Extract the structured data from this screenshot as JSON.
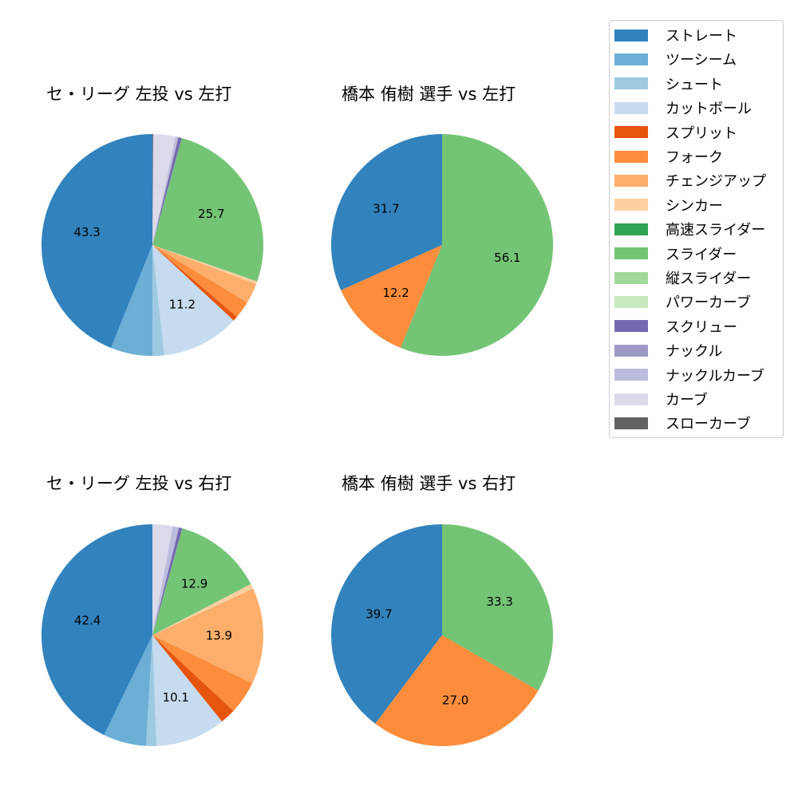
{
  "legend": {
    "items": [
      {
        "label": "ストレート",
        "color": "#3182bd"
      },
      {
        "label": "ツーシーム",
        "color": "#6baed6"
      },
      {
        "label": "シュート",
        "color": "#9ecae1"
      },
      {
        "label": "カットボール",
        "color": "#c6dbef"
      },
      {
        "label": "スプリット",
        "color": "#e6550d"
      },
      {
        "label": "フォーク",
        "color": "#fd8d3c"
      },
      {
        "label": "チェンジアップ",
        "color": "#fdae6b"
      },
      {
        "label": "シンカー",
        "color": "#fdd0a2"
      },
      {
        "label": "高速スライダー",
        "color": "#31a354"
      },
      {
        "label": "スライダー",
        "color": "#74c476"
      },
      {
        "label": "縦スライダー",
        "color": "#a1d99b"
      },
      {
        "label": "パワーカーブ",
        "color": "#c7e9c0"
      },
      {
        "label": "スクリュー",
        "color": "#756bb1"
      },
      {
        "label": "ナックル",
        "color": "#9e9ac8"
      },
      {
        "label": "ナックルカーブ",
        "color": "#bcbddc"
      },
      {
        "label": "カーブ",
        "color": "#dadaeb"
      },
      {
        "label": "スローカーブ",
        "color": "#636363"
      }
    ]
  },
  "chart_data": [
    {
      "type": "pie",
      "title": "セ・リーグ 左投 vs 左打",
      "slices": [
        {
          "label": "ストレート",
          "value": 43.3,
          "color": "#3182bd",
          "show_label": true
        },
        {
          "label": "ツーシーム",
          "value": 6.0,
          "color": "#6baed6",
          "show_label": false
        },
        {
          "label": "シュート",
          "value": 1.7,
          "color": "#9ecae1",
          "show_label": false
        },
        {
          "label": "カットボール",
          "value": 11.2,
          "color": "#c6dbef",
          "show_label": true
        },
        {
          "label": "スプリット",
          "value": 0.7,
          "color": "#e6550d",
          "show_label": false
        },
        {
          "label": "フォーク",
          "value": 2.5,
          "color": "#fd8d3c",
          "show_label": false
        },
        {
          "label": "チェンジアップ",
          "value": 2.9,
          "color": "#fdae6b",
          "show_label": false
        },
        {
          "label": "シンカー",
          "value": 0.4,
          "color": "#fdd0a2",
          "show_label": false
        },
        {
          "label": "スライダー",
          "value": 25.7,
          "color": "#74c476",
          "show_label": true
        },
        {
          "label": "スクリュー",
          "value": 0.5,
          "color": "#756bb1",
          "show_label": false
        },
        {
          "label": "ナックルカーブ",
          "value": 0.4,
          "color": "#bcbddc",
          "show_label": false
        },
        {
          "label": "カーブ",
          "value": 3.2,
          "color": "#dadaeb",
          "show_label": false
        },
        {
          "label": "スローカーブ",
          "value": 0.1,
          "color": "#636363",
          "show_label": false
        }
      ]
    },
    {
      "type": "pie",
      "title": "橋本 侑樹 選手 vs 左打",
      "slices": [
        {
          "label": "ストレート",
          "value": 31.7,
          "color": "#3182bd",
          "show_label": true
        },
        {
          "label": "フォーク",
          "value": 12.2,
          "color": "#fd8d3c",
          "show_label": true
        },
        {
          "label": "スライダー",
          "value": 56.1,
          "color": "#74c476",
          "show_label": true
        }
      ]
    },
    {
      "type": "pie",
      "title": "セ・リーグ 左投 vs 右打",
      "slices": [
        {
          "label": "ストレート",
          "value": 42.4,
          "color": "#3182bd",
          "show_label": true
        },
        {
          "label": "ツーシーム",
          "value": 6.2,
          "color": "#6baed6",
          "show_label": false
        },
        {
          "label": "シュート",
          "value": 1.5,
          "color": "#9ecae1",
          "show_label": false
        },
        {
          "label": "カットボール",
          "value": 10.1,
          "color": "#c6dbef",
          "show_label": true
        },
        {
          "label": "スプリット",
          "value": 2.2,
          "color": "#e6550d",
          "show_label": false
        },
        {
          "label": "フォーク",
          "value": 4.8,
          "color": "#fd8d3c",
          "show_label": false
        },
        {
          "label": "チェンジアップ",
          "value": 13.9,
          "color": "#fdae6b",
          "show_label": true
        },
        {
          "label": "シンカー",
          "value": 0.7,
          "color": "#fdd0a2",
          "show_label": false
        },
        {
          "label": "スライダー",
          "value": 12.9,
          "color": "#74c476",
          "show_label": true
        },
        {
          "label": "スクリュー",
          "value": 0.5,
          "color": "#756bb1",
          "show_label": false
        },
        {
          "label": "ナックルカーブ",
          "value": 0.9,
          "color": "#bcbddc",
          "show_label": false
        },
        {
          "label": "カーブ",
          "value": 2.9,
          "color": "#dadaeb",
          "show_label": false
        }
      ]
    },
    {
      "type": "pie",
      "title": "橋本 侑樹 選手 vs 右打",
      "slices": [
        {
          "label": "ストレート",
          "value": 39.7,
          "color": "#3182bd",
          "show_label": true
        },
        {
          "label": "フォーク",
          "value": 27.0,
          "color": "#fd8d3c",
          "show_label": true
        },
        {
          "label": "スライダー",
          "value": 33.3,
          "color": "#74c476",
          "show_label": true
        }
      ]
    }
  ]
}
